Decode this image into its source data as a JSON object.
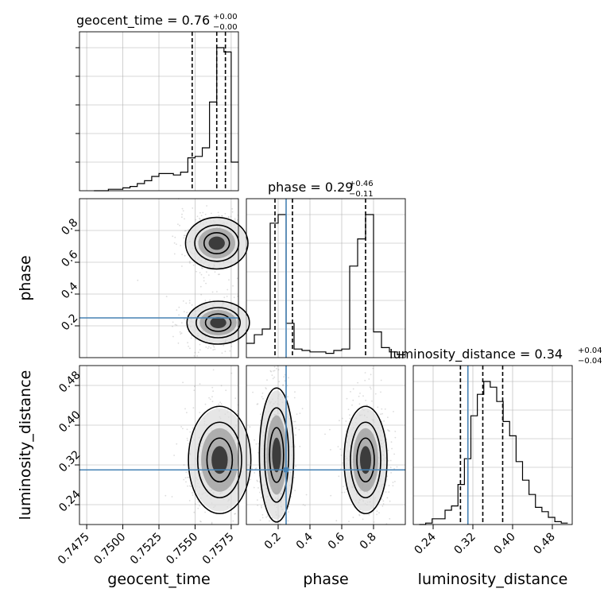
{
  "chart_data": {
    "type": "corner",
    "parameters": [
      "geocent_time",
      "phase",
      "luminosity_distance"
    ],
    "injection_values": {
      "phase": 0.25,
      "luminosity_distance": 0.31
    },
    "colors": {
      "truth": "#4682b4",
      "hist": "#000000",
      "grid": "#b0b0b0",
      "scatter": "#808080"
    },
    "grid": true,
    "panels": {
      "geocent_time": {
        "title": "geocent_time = 0.76",
        "title_sup": "+0.00",
        "title_sub": "−0.00",
        "range": [
          0.747,
          0.758
        ],
        "quantiles": [
          0.7548,
          0.7565,
          0.7571
        ],
        "bin_edges": [
          0.748,
          0.7485,
          0.749,
          0.7495,
          0.75,
          0.7505,
          0.751,
          0.7515,
          0.752,
          0.7525,
          0.753,
          0.7535,
          0.754,
          0.7545,
          0.755,
          0.7555,
          0.756,
          0.7565,
          0.757,
          0.7575,
          0.758
        ],
        "counts": [
          0.0,
          0.0,
          0.01,
          0.01,
          0.02,
          0.03,
          0.05,
          0.07,
          0.1,
          0.12,
          0.12,
          0.11,
          0.13,
          0.23,
          0.24,
          0.3,
          0.62,
          1.0,
          0.97,
          0.2
        ]
      },
      "phase": {
        "title": "phase = 0.29",
        "title_sup": "+0.46",
        "title_sub": "−0.11",
        "range": [
          0.0,
          1.0
        ],
        "quantiles": [
          0.18,
          0.29,
          0.75
        ],
        "bin_edges": [
          0.0,
          0.05,
          0.1,
          0.15,
          0.2,
          0.25,
          0.3,
          0.35,
          0.4,
          0.45,
          0.5,
          0.55,
          0.6,
          0.65,
          0.7,
          0.75,
          0.8,
          0.85,
          0.9,
          0.95,
          1.0
        ],
        "counts": [
          0.1,
          0.16,
          0.2,
          0.94,
          1.0,
          0.24,
          0.06,
          0.05,
          0.04,
          0.04,
          0.03,
          0.05,
          0.06,
          0.64,
          0.83,
          1.0,
          0.18,
          0.07,
          0.04,
          0.02
        ]
      },
      "luminosity_distance": {
        "title": "luminosity_distance = 0.34",
        "title_sup": "+0.04",
        "title_sub": "−0.04",
        "range": [
          0.2,
          0.52
        ],
        "quantiles": [
          0.295,
          0.34,
          0.38
        ],
        "bin_edges": [
          0.212,
          0.225,
          0.238,
          0.251,
          0.264,
          0.277,
          0.29,
          0.303,
          0.316,
          0.329,
          0.342,
          0.355,
          0.368,
          0.381,
          0.394,
          0.407,
          0.42,
          0.433,
          0.446,
          0.459,
          0.472,
          0.485,
          0.498,
          0.511
        ],
        "counts": [
          0.0,
          0.01,
          0.04,
          0.04,
          0.1,
          0.13,
          0.28,
          0.46,
          0.76,
          0.91,
          1.0,
          0.96,
          0.86,
          0.72,
          0.62,
          0.44,
          0.31,
          0.21,
          0.12,
          0.09,
          0.05,
          0.02,
          0.01
        ]
      }
    },
    "axes": {
      "x_ticks": {
        "geocent_time": [
          "0.7475",
          "0.7500",
          "0.7525",
          "0.7550",
          "0.7575"
        ],
        "geocent_time_values": [
          0.7475,
          0.75,
          0.7525,
          0.755,
          0.7575
        ],
        "phase": [
          "0.2",
          "0.4",
          "0.6",
          "0.8"
        ],
        "phase_values": [
          0.2,
          0.4,
          0.6,
          0.8
        ],
        "luminosity_distance": [
          "0.24",
          "0.32",
          "0.40",
          "0.48"
        ],
        "luminosity_distance_values": [
          0.24,
          0.32,
          0.4,
          0.48
        ]
      },
      "y_ticks": {
        "phase": [
          "0.2",
          "0.4",
          "0.6",
          "0.8"
        ],
        "phase_values": [
          0.2,
          0.4,
          0.6,
          0.8
        ],
        "luminosity_distance": [
          "0.24",
          "0.32",
          "0.40",
          "0.48"
        ],
        "luminosity_distance_values": [
          0.24,
          0.32,
          0.4,
          0.48
        ]
      },
      "xlabels": [
        "geocent_time",
        "phase",
        "luminosity_distance"
      ],
      "ylabels": [
        "phase",
        "luminosity_distance"
      ]
    },
    "density_clusters": {
      "geocent_time_vs_phase": [
        {
          "x": 0.7565,
          "y": 0.72,
          "sx": 0.0008,
          "sy": 0.06
        },
        {
          "x": 0.7566,
          "y": 0.22,
          "sx": 0.0008,
          "sy": 0.05
        }
      ],
      "geocent_time_vs_luminosity_distance": [
        {
          "x": 0.7567,
          "y": 0.33,
          "sx": 0.0008,
          "sy": 0.04
        }
      ],
      "phase_vs_luminosity_distance": [
        {
          "x": 0.19,
          "y": 0.34,
          "sx": 0.04,
          "sy": 0.05
        },
        {
          "x": 0.75,
          "y": 0.33,
          "sx": 0.05,
          "sy": 0.04
        }
      ]
    }
  }
}
